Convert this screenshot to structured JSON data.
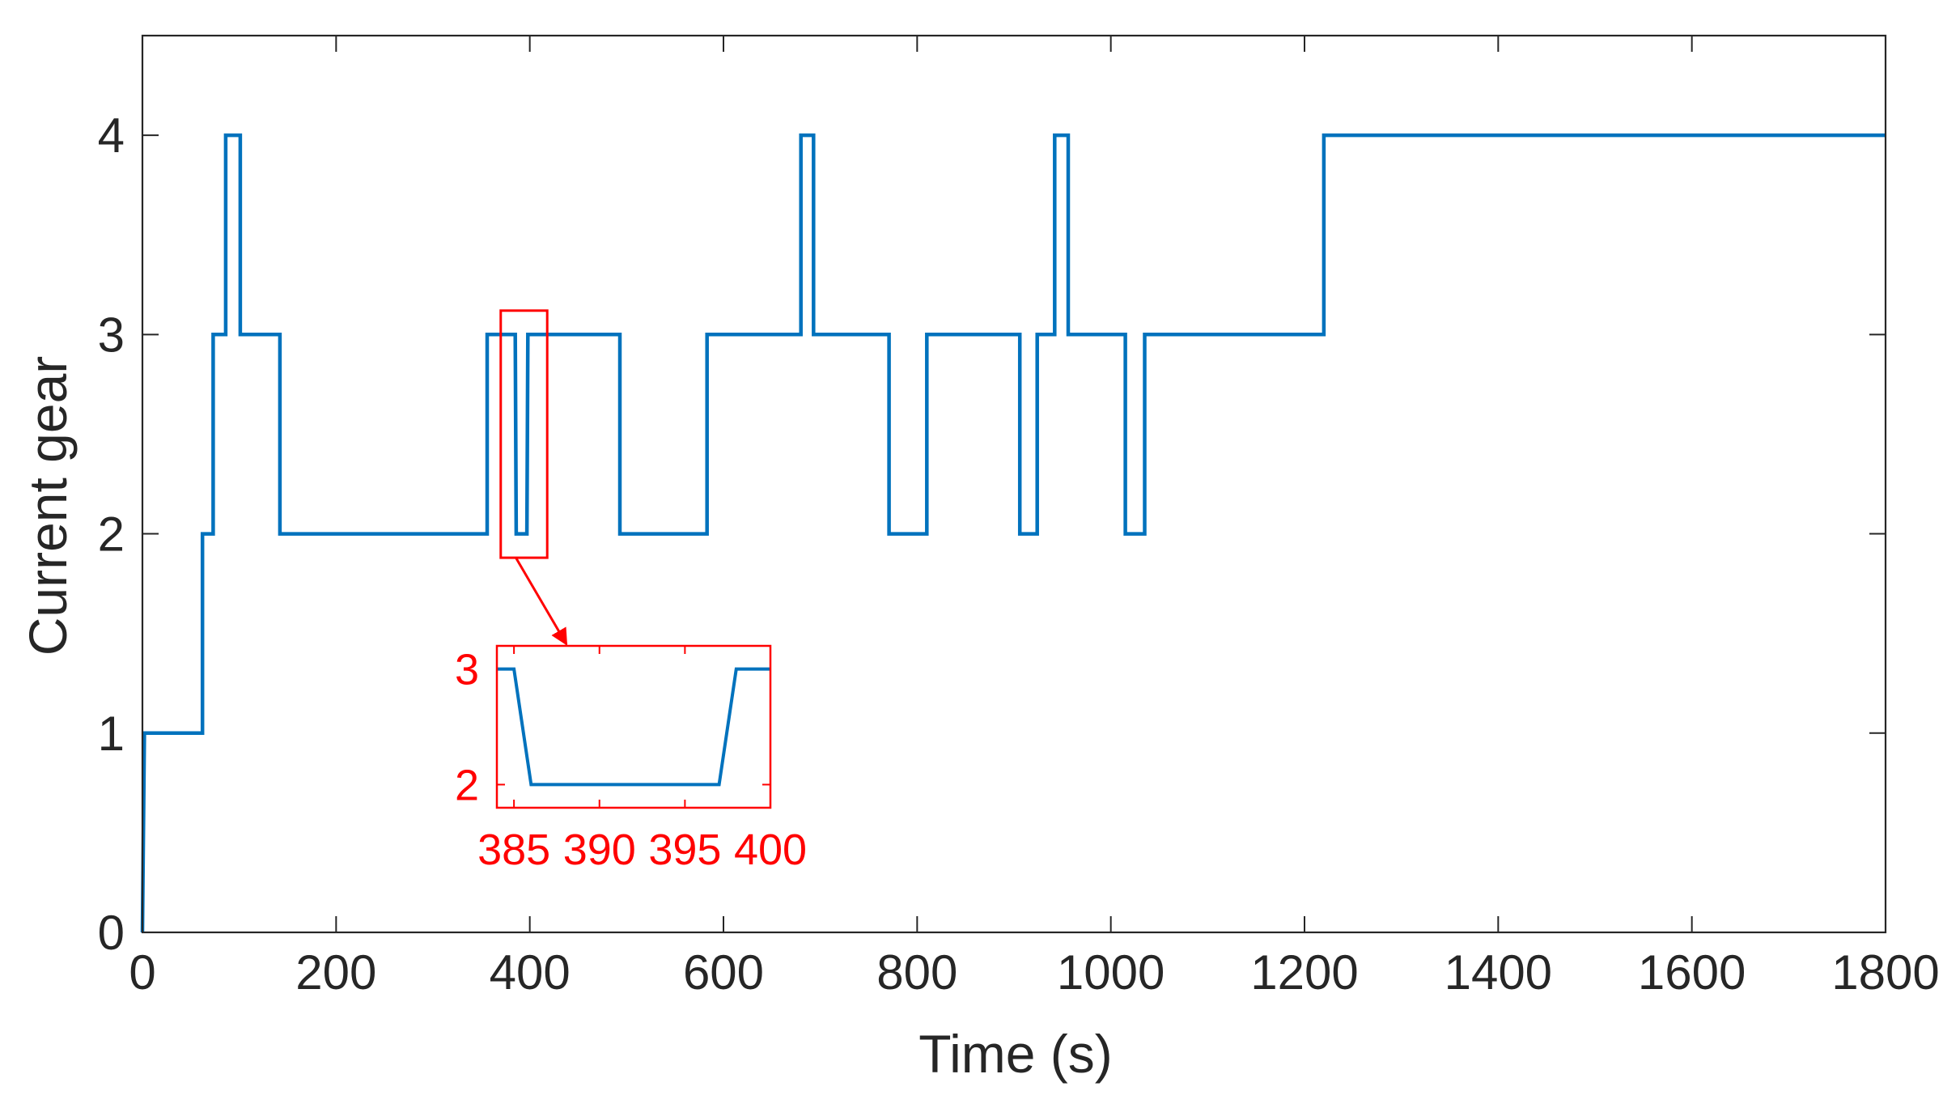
{
  "chart_data": {
    "type": "line",
    "xlabel": "Time (s)",
    "ylabel": "Current gear",
    "xlim": [
      0,
      1800
    ],
    "ylim": [
      0,
      4.5
    ],
    "x_ticks": [
      0,
      200,
      400,
      600,
      800,
      1000,
      1200,
      1400,
      1600,
      1800
    ],
    "y_ticks": [
      0,
      1,
      2,
      3,
      4
    ],
    "grid": false,
    "legend": "none",
    "colors": {
      "line": "#0072BD",
      "inset": "#FF0000",
      "axis": "#262626"
    },
    "series": [
      {
        "x": [
          0,
          2,
          62,
          62,
          73,
          73,
          86,
          86,
          101,
          101,
          142,
          142,
          356,
          356,
          385,
          386,
          397,
          398,
          493,
          493,
          583,
          583,
          680,
          680,
          693,
          693,
          771,
          771,
          810,
          810,
          906,
          906,
          924,
          924,
          942,
          942,
          956,
          956,
          1015,
          1015,
          1035,
          1035,
          1220,
          1220,
          1800
        ],
        "y": [
          0,
          1,
          1,
          2,
          2,
          3,
          3,
          4,
          4,
          3,
          3,
          2,
          2,
          3,
          3,
          2,
          2,
          3,
          3,
          2,
          2,
          3,
          3,
          4,
          4,
          3,
          3,
          2,
          2,
          3,
          3,
          2,
          2,
          3,
          3,
          4,
          4,
          3,
          3,
          2,
          2,
          3,
          3,
          4,
          4
        ]
      }
    ],
    "zoom_box": {
      "x_range": [
        370,
        418
      ],
      "y_range": [
        1.88,
        3.12
      ]
    },
    "inset": {
      "xlim": [
        384,
        400
      ],
      "ylim": [
        1.8,
        3.2
      ],
      "x_ticks": [
        385,
        390,
        395,
        400
      ],
      "y_ticks": [
        2,
        3
      ],
      "x": [
        384,
        385,
        386,
        397,
        398,
        400
      ],
      "y": [
        3,
        3,
        2,
        2,
        3,
        3
      ]
    }
  }
}
